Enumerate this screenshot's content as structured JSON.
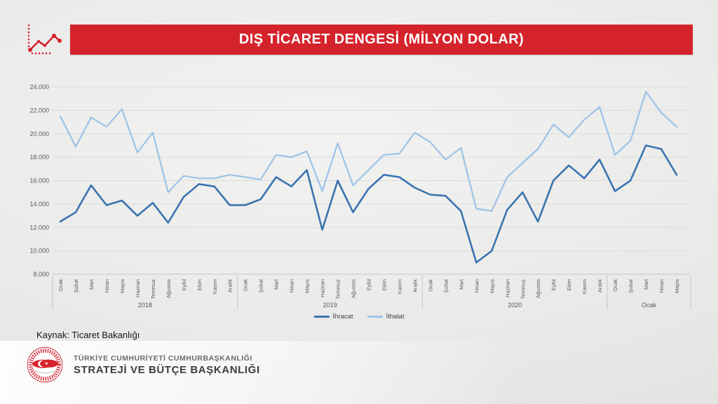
{
  "header": {
    "title": "DIŞ TİCARET DENGESİ (MİLYON DOLAR)",
    "accent_color": "#d5232c"
  },
  "chart_data": {
    "type": "line",
    "title": "DIŞ TİCARET DENGESİ (MİLYON DOLAR)",
    "unit": "milyon dolar",
    "grid": true,
    "legend_position": "bottom",
    "ylim": [
      8000,
      24000
    ],
    "y_ticks": [
      "24.000",
      "22.000",
      "20.000",
      "18.000",
      "16.000",
      "14.000",
      "12.000",
      "10.000",
      "8.000"
    ],
    "year_groups": [
      {
        "label": "2018",
        "months": 12
      },
      {
        "label": "2019",
        "months": 12
      },
      {
        "label": "2020",
        "months": 12
      },
      {
        "label": "Ocak",
        "months": 5
      }
    ],
    "x_labels": [
      "Ocak",
      "Şubat",
      "Mart",
      "Nisan",
      "Mayıs",
      "Haziran",
      "Temmuz",
      "Ağustos",
      "Eylül",
      "Ekim",
      "Kasım",
      "Aralık",
      "Ocak",
      "Şubat",
      "Mart",
      "Nisan",
      "Mayıs",
      "Haziran",
      "Temmuz",
      "Ağustos",
      "Eylül",
      "Ekim",
      "Kasım",
      "Aralık",
      "Ocak",
      "Şubat",
      "Mart",
      "Nisan",
      "Mayıs",
      "Haziran",
      "Temmuz",
      "Ağustos",
      "Eylül",
      "Ekim",
      "Kasım",
      "Aralık",
      "Ocak",
      "Şubat",
      "Mart",
      "Nisan",
      "Mayıs"
    ],
    "series": [
      {
        "name": "İhracat",
        "color": "#3a74ae",
        "values": [
          12500,
          13300,
          15600,
          13900,
          14300,
          13000,
          14100,
          12400,
          14600,
          15700,
          15500,
          13900,
          13900,
          14400,
          16300,
          15500,
          16900,
          11800,
          16000,
          13300,
          15300,
          16500,
          16300,
          15400,
          14800,
          14700,
          13400,
          9000,
          10000,
          13500,
          15000,
          12500,
          16000,
          17300,
          16200,
          17800,
          15100,
          16000,
          19000,
          18700,
          16500
        ]
      },
      {
        "name": "İthalat",
        "color": "#9dc3e6",
        "values": [
          21500,
          18900,
          21400,
          20600,
          22100,
          18400,
          20100,
          15000,
          16400,
          16200,
          16200,
          16500,
          16300,
          16100,
          18200,
          18000,
          18500,
          15100,
          19200,
          15600,
          16900,
          18200,
          18300,
          20100,
          19300,
          17800,
          18800,
          13600,
          13400,
          16300,
          17500,
          18700,
          20800,
          19700,
          21200,
          22300,
          18200,
          19400,
          23600,
          21800,
          20600
        ]
      }
    ]
  },
  "footer": {
    "source": "Kaynak: Ticaret Bakanlığı",
    "org_line1": "TÜRKİYE CUMHURİYETİ CUMHURBAŞKANLIĞI",
    "org_line2": "STRATEJİ VE BÜTÇE BAŞKANLIĞI"
  }
}
